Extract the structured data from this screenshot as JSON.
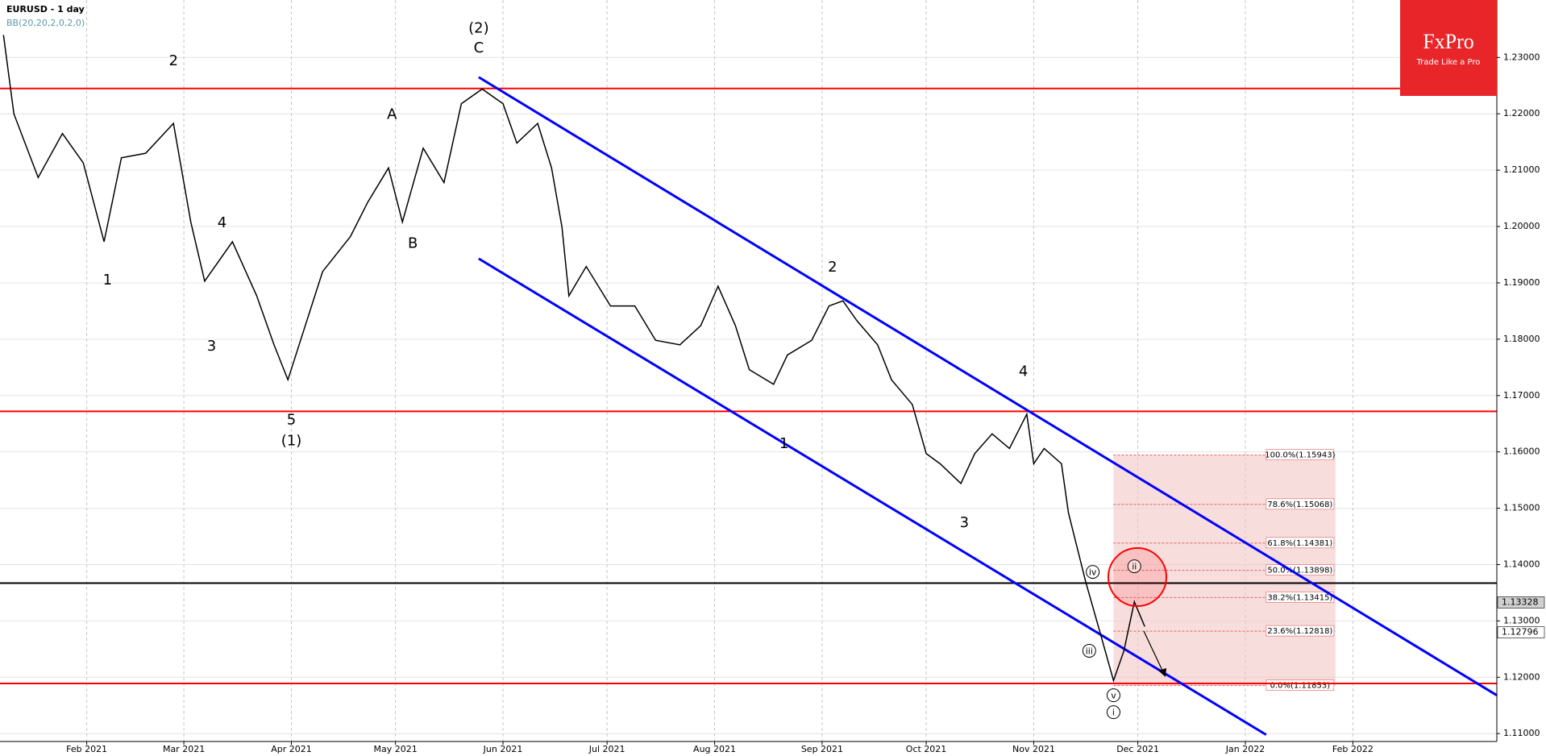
{
  "chart_data": {
    "type": "line",
    "title": "EURUSD - 1 day",
    "subtitle": "BB(20,20,2,0,2,0)",
    "brand": {
      "name": "FxPro",
      "tagline": "Trade Like a Pro"
    },
    "x": [
      7,
      10,
      17,
      24,
      30,
      36,
      41,
      48,
      56,
      61,
      65,
      73,
      80,
      85,
      89,
      94,
      99,
      107,
      112,
      118,
      122,
      128,
      134,
      139,
      145,
      151,
      155,
      161,
      165,
      168,
      170,
      175,
      182,
      189,
      195,
      202,
      208,
      213,
      218,
      222,
      229,
      233,
      240,
      245,
      249,
      253,
      259,
      263,
      269,
      273,
      277,
      283,
      287,
      292,
      297,
      302,
      304,
      307,
      312,
      314,
      319,
      323,
      327,
      330,
      333,
      336
    ],
    "values": [
      1.234,
      1.22,
      1.2087,
      1.2165,
      1.2113,
      1.1973,
      1.2122,
      1.213,
      1.2183,
      1.2008,
      1.1903,
      1.1973,
      1.1877,
      1.179,
      1.1728,
      1.1824,
      1.192,
      1.1982,
      1.2043,
      1.2104,
      1.2008,
      1.2139,
      1.2078,
      1.2218,
      1.2244,
      1.2218,
      1.2148,
      1.2183,
      1.2104,
      1.1999,
      1.1877,
      1.1929,
      1.1859,
      1.1859,
      1.1798,
      1.179,
      1.1824,
      1.1894,
      1.1824,
      1.1746,
      1.172,
      1.1772,
      1.1798,
      1.1859,
      1.1868,
      1.1833,
      1.179,
      1.1728,
      1.1684,
      1.1597,
      1.1579,
      1.1544,
      1.1597,
      1.1632,
      1.1606,
      1.1667,
      1.1579,
      1.1606,
      1.1579,
      1.1492,
      1.1369,
      1.1282,
      1.1194,
      1.1247,
      1.1334,
      1.129
    ],
    "color": "#000000",
    "xlim": [
      6,
      437.5
    ],
    "ylim": [
      1.1086,
      1.2402
    ],
    "xticks": [
      {
        "value": 31,
        "label": "Feb 2021"
      },
      {
        "value": 59,
        "label": "Mar 2021"
      },
      {
        "value": 90,
        "label": "Apr 2021"
      },
      {
        "value": 120,
        "label": "May 2021"
      },
      {
        "value": 151,
        "label": "Jun 2021"
      },
      {
        "value": 181,
        "label": "Jul 2021"
      },
      {
        "value": 212,
        "label": "Aug 2021"
      },
      {
        "value": 243,
        "label": "Sep 2021"
      },
      {
        "value": 273,
        "label": "Oct 2021"
      },
      {
        "value": 304,
        "label": "Nov 2021"
      },
      {
        "value": 334,
        "label": "Dec 2021"
      },
      {
        "value": 365,
        "label": "Jan 2022"
      },
      {
        "value": 396,
        "label": "Feb 2022"
      }
    ],
    "yticks": [
      {
        "value": 1.11,
        "label": "1.11000"
      },
      {
        "value": 1.12,
        "label": "1.12000"
      },
      {
        "value": 1.13,
        "label": "1.13000"
      },
      {
        "value": 1.14,
        "label": "1.14000"
      },
      {
        "value": 1.15,
        "label": "1.15000"
      },
      {
        "value": 1.16,
        "label": "1.16000"
      },
      {
        "value": 1.17,
        "label": "1.17000"
      },
      {
        "value": 1.18,
        "label": "1.18000"
      },
      {
        "value": 1.19,
        "label": "1.19000"
      },
      {
        "value": 1.2,
        "label": "1.20000"
      },
      {
        "value": 1.21,
        "label": "1.21000"
      },
      {
        "value": 1.22,
        "label": "1.22000"
      },
      {
        "value": 1.23,
        "label": "1.23000"
      }
    ],
    "grid": true,
    "levels": [
      {
        "value": 1.2245,
        "color": "#ff0000"
      },
      {
        "value": 1.1672,
        "color": "#ff0000"
      },
      {
        "value": 1.1189,
        "color": "#ff0000"
      },
      {
        "value": 1.1367,
        "color": "#000000"
      }
    ],
    "channels": [
      {
        "x": [
          144,
          437.5
        ],
        "y": [
          1.2265,
          1.1168
        ],
        "color": "#0000ff"
      },
      {
        "x": [
          144,
          371
        ],
        "y": [
          1.1943,
          1.1098
        ],
        "color": "#0000ff"
      }
    ],
    "fib_zone": {
      "x": [
        327,
        391
      ],
      "color": "#f4c6c6",
      "levels": [
        {
          "value": 1.15943,
          "label": "100.0%(1.15943)"
        },
        {
          "value": 1.15068,
          "label": "78.6%(1.15068)"
        },
        {
          "value": 1.14381,
          "label": "61.8%(1.14381)"
        },
        {
          "value": 1.13898,
          "label": "50.0%(1.13898)"
        },
        {
          "value": 1.13415,
          "label": "38.2%(1.13415)"
        },
        {
          "value": 1.12818,
          "label": "23.6%(1.12818)"
        },
        {
          "value": 1.11853,
          "label": "0.0%(1.11853)"
        }
      ]
    },
    "price_tags": [
      {
        "value": 1.13328,
        "label": "1.13328"
      },
      {
        "value": 1.12796,
        "label": "1.12796"
      }
    ],
    "annotations": [
      {
        "text": "2",
        "x": 56,
        "y": 1.2293
      },
      {
        "text": "1",
        "x": 37,
        "y": 1.1904
      },
      {
        "text": "3",
        "x": 67,
        "y": 1.1787
      },
      {
        "text": "4",
        "x": 70,
        "y": 1.2006
      },
      {
        "text": "5",
        "x": 90,
        "y": 1.1656
      },
      {
        "text": "(1)",
        "x": 90,
        "y": 1.1619
      },
      {
        "text": "A",
        "x": 119,
        "y": 1.2198
      },
      {
        "text": "B",
        "x": 125,
        "y": 1.1969
      },
      {
        "text": "(2)",
        "x": 144,
        "y": 1.2351
      },
      {
        "text": "C",
        "x": 144,
        "y": 1.2316
      },
      {
        "text": "2",
        "x": 246,
        "y": 1.1927
      },
      {
        "text": "1",
        "x": 232,
        "y": 1.1614
      },
      {
        "text": "4",
        "x": 301,
        "y": 1.1742
      },
      {
        "text": "3",
        "x": 284,
        "y": 1.1474
      },
      {
        "text": "ii",
        "x": 333,
        "y": 1.1397,
        "circled": true
      },
      {
        "text": "iv",
        "x": 321,
        "y": 1.1387,
        "circled": true
      },
      {
        "text": "iii",
        "x": 320,
        "y": 1.1247,
        "circled": true
      },
      {
        "text": "v",
        "x": 327,
        "y": 1.1168,
        "circled": true
      },
      {
        "text": "i",
        "x": 327,
        "y": 1.1138,
        "circled": true
      }
    ]
  }
}
